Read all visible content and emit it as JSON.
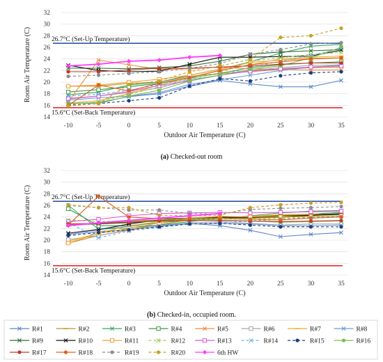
{
  "chart_data": [
    {
      "type": "line",
      "caption_prefix": "(a)",
      "caption_text": "Checked-out room",
      "xlabel": "Outdoor Air Temperature (C)",
      "ylabel": "Room Air Temperature (C)",
      "x": [
        -10,
        -5,
        0,
        5,
        10,
        15,
        20,
        25,
        30,
        35
      ],
      "ylim": [
        14,
        32
      ],
      "yticks": [
        14,
        16,
        18,
        20,
        22,
        24,
        26,
        28,
        30,
        32
      ],
      "ref_lines": [
        {
          "value": 26.7,
          "label": "26.7°C (Set-Up Temperature)",
          "color": "#2f55a4"
        },
        {
          "value": 15.6,
          "label": "15.6°C (Set-Back Temperature)",
          "color": "#d62c2c"
        }
      ],
      "series_values": [
        [
          16.3,
          16.5,
          17.5,
          18.0,
          19.3,
          20.3,
          19.7,
          19.2,
          19.2,
          20.3
        ],
        [
          19.3,
          19.3,
          19.8,
          20.0,
          21.0,
          21.5,
          21.8,
          22.2,
          22.5,
          22.6
        ],
        [
          17.8,
          18.3,
          19.5,
          20.0,
          21.2,
          22.2,
          23.5,
          25.0,
          26.2,
          26.5
        ],
        [
          18.3,
          18.7,
          19.2,
          19.8,
          20.7,
          21.5,
          22.5,
          23.0,
          23.3,
          23.5
        ],
        [
          16.6,
          23.8,
          23.0,
          22.2,
          22.3,
          22.6,
          22.3,
          22.2,
          22.1,
          22.1
        ],
        [
          17.1,
          17.6,
          18.2,
          19.0,
          20.4,
          21.2,
          22.0,
          22.5,
          22.9,
          23.0
        ],
        [
          16.4,
          16.8,
          18.0,
          19.5,
          20.8,
          22.0,
          23.0,
          24.0,
          24.3,
          24.5
        ],
        [
          16.9,
          17.3,
          17.6,
          18.2,
          19.6,
          20.4,
          21.2,
          22.0,
          22.6,
          22.9
        ],
        [
          22.4,
          22.4,
          22.3,
          22.5,
          22.8,
          23.6,
          24.8,
          25.2,
          25.4,
          25.6
        ],
        [
          22.9,
          22.0,
          21.8,
          21.9,
          23.1,
          24.3,
          24.3,
          24.4,
          24.5,
          25.5
        ],
        [
          19.3,
          19.5,
          20.0,
          20.5,
          21.2,
          22.2,
          23.4,
          23.8,
          24.1,
          24.2
        ],
        [
          16.1,
          16.6,
          17.9,
          19.2,
          20.6,
          21.6,
          23.6,
          24.2,
          24.8,
          25.1
        ],
        [
          17.2,
          17.6,
          18.4,
          19.4,
          20.2,
          21.2,
          21.9,
          22.3,
          22.6,
          22.8
        ],
        [
          17.6,
          17.9,
          18.6,
          19.6,
          20.5,
          21.1,
          22.6,
          23.6,
          24.6,
          25.8
        ],
        [
          16.0,
          16.3,
          16.8,
          17.3,
          19.3,
          20.6,
          20.2,
          21.1,
          21.6,
          21.8
        ],
        [
          16.4,
          16.3,
          17.6,
          18.6,
          20.2,
          21.2,
          22.2,
          22.8,
          24.2,
          26.0
        ],
        [
          21.8,
          21.8,
          22.1,
          22.4,
          22.4,
          22.6,
          22.8,
          23.1,
          23.3,
          23.3
        ],
        [
          16.0,
          19.5,
          18.5,
          19.8,
          20.8,
          22.0,
          23.0,
          23.5,
          24.0,
          24.2
        ],
        [
          21.0,
          21.2,
          21.5,
          21.8,
          22.4,
          23.2,
          24.8,
          25.6,
          26.6,
          26.8
        ],
        [
          15.9,
          16.3,
          19.6,
          20.2,
          21.8,
          22.8,
          23.9,
          27.7,
          28.0,
          29.3
        ],
        [
          22.8,
          23.1,
          23.6,
          23.8,
          24.3,
          24.6,
          null,
          null,
          null,
          null
        ]
      ]
    },
    {
      "type": "line",
      "caption_prefix": "(b)",
      "caption_text": "Checked-in, occupied room.",
      "xlabel": "Outdoor Air Temperature (C)",
      "ylabel": "Room Air Temperature (C)",
      "x": [
        -10,
        -5,
        0,
        5,
        10,
        15,
        20,
        25,
        30,
        35
      ],
      "ylim": [
        14,
        32
      ],
      "yticks": [
        14,
        16,
        18,
        20,
        22,
        24,
        26,
        28,
        30,
        32
      ],
      "ref_lines": [
        {
          "value": 26.7,
          "label": "26.7°C (Set-Up Temperature)",
          "color": "#2f55a4"
        },
        {
          "value": 15.6,
          "label": "15.6°C (Set-Back Temperature)",
          "color": "#d62c2c"
        }
      ],
      "series_values": [
        [
          21.0,
          21.5,
          21.8,
          22.4,
          22.9,
          22.5,
          21.7,
          20.6,
          21.0,
          21.3
        ],
        [
          19.5,
          20.8,
          21.8,
          22.7,
          23.5,
          23.9,
          23.8,
          23.9,
          24.2,
          24.6
        ],
        [
          26.0,
          21.9,
          22.1,
          22.6,
          23.2,
          23.8,
          24.2,
          24.7,
          25.0,
          25.1
        ],
        [
          25.4,
          22.5,
          22.5,
          23.0,
          23.5,
          23.9,
          23.8,
          24.2,
          24.5,
          24.8
        ],
        [
          22.6,
          22.8,
          23.2,
          23.4,
          23.8,
          24.0,
          24.1,
          24.3,
          24.4,
          24.4
        ],
        [
          20.1,
          20.8,
          21.7,
          22.5,
          23.0,
          23.2,
          22.9,
          22.6,
          22.8,
          22.8
        ],
        [
          19.8,
          21.2,
          22.5,
          23.2,
          23.6,
          23.8,
          24.1,
          24.4,
          24.5,
          24.5
        ],
        [
          21.2,
          21.9,
          22.4,
          22.6,
          22.8,
          22.9,
          22.8,
          22.5,
          22.5,
          22.6
        ],
        [
          22.7,
          22.8,
          23.0,
          23.4,
          23.6,
          23.8,
          24.0,
          24.2,
          24.3,
          24.4
        ],
        [
          21.2,
          21.8,
          22.8,
          23.5,
          23.8,
          24.0,
          23.9,
          24.0,
          24.3,
          24.6
        ],
        [
          19.5,
          21.2,
          22.0,
          23.0,
          23.8,
          24.1,
          24.0,
          24.0,
          24.1,
          24.2
        ],
        [
          23.5,
          23.2,
          23.3,
          23.5,
          23.6,
          23.7,
          23.6,
          23.8,
          24.0,
          24.1
        ],
        [
          23.2,
          23.6,
          24.2,
          24.6,
          24.7,
          24.8,
          24.7,
          24.8,
          24.9,
          25.0
        ],
        [
          23.0,
          20.4,
          21.6,
          22.2,
          22.8,
          23.0,
          23.3,
          23.6,
          23.9,
          24.1
        ],
        [
          20.8,
          21.3,
          21.8,
          22.3,
          22.8,
          22.9,
          22.6,
          22.3,
          22.3,
          22.3
        ],
        [
          22.7,
          22.9,
          23.3,
          23.5,
          23.6,
          23.5,
          23.3,
          23.1,
          23.2,
          23.3
        ],
        [
          22.8,
          22.9,
          23.1,
          23.3,
          23.4,
          23.4,
          23.3,
          23.2,
          23.3,
          23.4
        ],
        [
          22.6,
          27.6,
          24.0,
          23.7,
          23.8,
          23.8,
          23.6,
          23.5,
          23.8,
          24.0
        ],
        [
          26.0,
          25.6,
          25.2,
          25.2,
          24.6,
          24.5,
          25.3,
          25.5,
          25.6,
          25.8
        ],
        [
          26.1,
          25.6,
          25.6,
          24.3,
          24.2,
          24.3,
          25.6,
          26.1,
          26.4,
          26.5
        ],
        [
          22.5,
          23.0,
          23.4,
          23.8,
          24.2,
          24.6,
          null,
          null,
          null,
          null
        ]
      ]
    }
  ],
  "legend": [
    {
      "name": "R#1",
      "color": "#5b87c9",
      "marker": "x",
      "dash": "none"
    },
    {
      "name": "R#2",
      "color": "#c8902c",
      "marker": "dash",
      "dash": "none"
    },
    {
      "name": "R#3",
      "color": "#3aa56a",
      "marker": "x",
      "dash": "none"
    },
    {
      "name": "R#4",
      "color": "#3e9a3e",
      "marker": "square",
      "dash": "none"
    },
    {
      "name": "R#5",
      "color": "#f08a3c",
      "marker": "x",
      "dash": "none"
    },
    {
      "name": "R#6",
      "color": "#a8a8a8",
      "marker": "square",
      "dash": "none"
    },
    {
      "name": "R#7",
      "color": "#e8b020",
      "marker": "dash",
      "dash": "none"
    },
    {
      "name": "R#8",
      "color": "#6d9bd6",
      "marker": "x",
      "dash": "none"
    },
    {
      "name": "R#9",
      "color": "#2e6b2e",
      "marker": "x",
      "dash": "none"
    },
    {
      "name": "R#10",
      "color": "#111111",
      "marker": "x",
      "dash": "none"
    },
    {
      "name": "R#11",
      "color": "#f0a030",
      "marker": "square",
      "dash": "none"
    },
    {
      "name": "R#12",
      "color": "#9ccf4a",
      "marker": "x",
      "dash": "4,3"
    },
    {
      "name": "R#13",
      "color": "#d857d8",
      "marker": "square",
      "dash": "none"
    },
    {
      "name": "R#14",
      "color": "#6fb0e6",
      "marker": "x",
      "dash": "4,3"
    },
    {
      "name": "R#15",
      "color": "#1d3d7a",
      "marker": "circle",
      "dash": "4,3"
    },
    {
      "name": "R#16",
      "color": "#7bbd4f",
      "marker": "circle",
      "dash": "none"
    },
    {
      "name": "R#17",
      "color": "#c0392b",
      "marker": "circle",
      "dash": "none"
    },
    {
      "name": "R#18",
      "color": "#d9601a",
      "marker": "circle",
      "dash": "none"
    },
    {
      "name": "R#19",
      "color": "#8c8c8c",
      "marker": "circle",
      "dash": "4,3"
    },
    {
      "name": "R#20",
      "color": "#c8a020",
      "marker": "circle",
      "dash": "4,3"
    },
    {
      "name": "6th HW",
      "color": "#ff3cff",
      "marker": "diamond",
      "dash": "none"
    }
  ]
}
